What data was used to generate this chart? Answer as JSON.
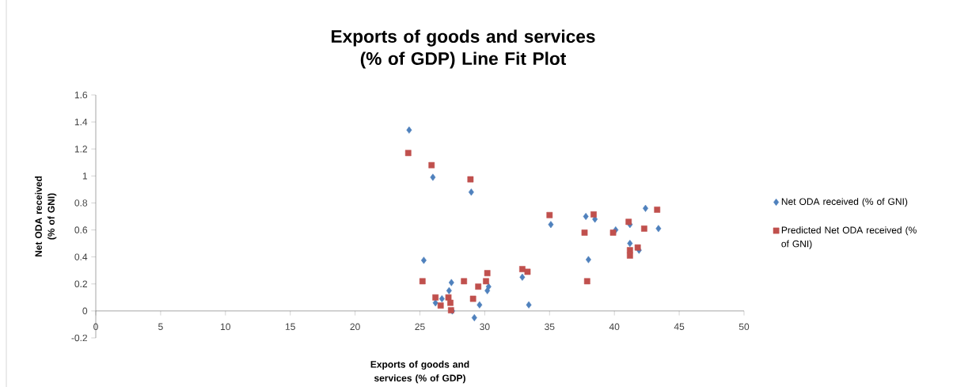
{
  "chart_data": {
    "type": "scatter",
    "title": "Exports of goods and services (% of GDP) Line Fit Plot",
    "xlabel": "Exports of goods and services (% of GDP)",
    "ylabel": "Net ODA received (% of GNI)",
    "xlim": [
      0,
      50
    ],
    "ylim": [
      -0.2,
      1.6
    ],
    "xticks": [
      0,
      5,
      10,
      15,
      20,
      25,
      30,
      35,
      40,
      45,
      50
    ],
    "yticks": [
      -0.2,
      0,
      0.2,
      0.4,
      0.6,
      0.8,
      1,
      1.2,
      1.4,
      1.6
    ],
    "legend": "right",
    "series": [
      {
        "name": "Net ODA received (% of GNI)",
        "color": "#4f81bd",
        "marker": "diamond",
        "x": [
          24.17,
          26.0,
          28.96,
          25.3,
          27.43,
          27.25,
          26.7,
          26.2,
          27.5,
          29.2,
          29.6,
          30.2,
          30.3,
          32.9,
          33.4,
          35.1,
          37.8,
          38.5,
          38.0,
          40.1,
          41.2,
          41.2,
          41.9,
          42.4,
          43.4
        ],
        "values": [
          1.34,
          0.99,
          0.88,
          0.375,
          0.21,
          0.15,
          0.09,
          0.06,
          0.0,
          -0.05,
          0.045,
          0.15,
          0.18,
          0.25,
          0.045,
          0.64,
          0.7,
          0.68,
          0.38,
          0.6,
          0.64,
          0.5,
          0.45,
          0.76,
          0.61
        ]
      },
      {
        "name": "Predicted Net ODA received (% of GNI)",
        "color": "#c0504d",
        "marker": "square",
        "x": [
          24.1,
          25.9,
          28.9,
          25.2,
          26.2,
          26.6,
          27.2,
          27.35,
          27.4,
          28.4,
          29.1,
          29.5,
          30.1,
          30.2,
          32.9,
          33.3,
          35.0,
          37.7,
          38.4,
          37.9,
          39.9,
          41.1,
          41.2,
          41.2,
          41.8,
          42.3,
          43.3
        ],
        "values": [
          1.17,
          1.08,
          0.975,
          0.22,
          0.1,
          0.04,
          0.1,
          0.06,
          0.005,
          0.22,
          0.09,
          0.18,
          0.22,
          0.28,
          0.31,
          0.29,
          0.71,
          0.58,
          0.715,
          0.22,
          0.58,
          0.66,
          0.45,
          0.41,
          0.47,
          0.61,
          0.75
        ]
      }
    ]
  }
}
